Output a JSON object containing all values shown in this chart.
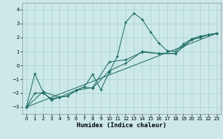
{
  "xlabel": "Humidex (Indice chaleur)",
  "xlim": [
    -0.5,
    23.5
  ],
  "ylim": [
    -3.5,
    4.5
  ],
  "yticks": [
    -3,
    -2,
    -1,
    0,
    1,
    2,
    3,
    4
  ],
  "xticks": [
    0,
    1,
    2,
    3,
    4,
    5,
    6,
    7,
    8,
    9,
    10,
    11,
    12,
    13,
    14,
    15,
    16,
    17,
    18,
    19,
    20,
    21,
    22,
    23
  ],
  "bg_color": "#cce8e8",
  "line_color": "#1a6b60",
  "grid_color": "#aacfcf",
  "line1_x": [
    0,
    1,
    2,
    3,
    4,
    5,
    6,
    7,
    8,
    9,
    10,
    11,
    12,
    13,
    14,
    15,
    16,
    17,
    18,
    19,
    20,
    21,
    22,
    23
  ],
  "line1_y": [
    -3.0,
    -0.6,
    -1.9,
    -2.5,
    -2.3,
    -2.2,
    -1.8,
    -1.55,
    -0.65,
    -1.75,
    -0.5,
    0.65,
    3.1,
    3.75,
    3.3,
    2.4,
    1.6,
    1.05,
    1.0,
    1.55,
    1.9,
    2.1,
    2.2,
    2.3
  ],
  "line2_x": [
    0,
    1,
    2,
    3,
    4,
    5,
    6,
    7,
    8,
    10,
    12,
    14,
    16,
    18,
    19,
    20,
    21,
    22,
    23
  ],
  "line2_y": [
    -3.0,
    -2.0,
    -2.0,
    -2.4,
    -2.3,
    -2.2,
    -1.8,
    -1.55,
    -1.65,
    -0.4,
    0.15,
    1.0,
    0.85,
    0.85,
    1.4,
    1.85,
    2.0,
    2.2,
    2.3
  ],
  "line3_x": [
    0,
    23
  ],
  "line3_y": [
    -3.0,
    2.3
  ],
  "line4_x": [
    0,
    2,
    4,
    6,
    8,
    10,
    12,
    14,
    16,
    18,
    20,
    21,
    22,
    23
  ],
  "line4_y": [
    -3.0,
    -1.9,
    -2.3,
    -1.8,
    -1.6,
    0.25,
    0.4,
    0.95,
    0.85,
    0.85,
    1.85,
    2.0,
    2.2,
    2.3
  ]
}
